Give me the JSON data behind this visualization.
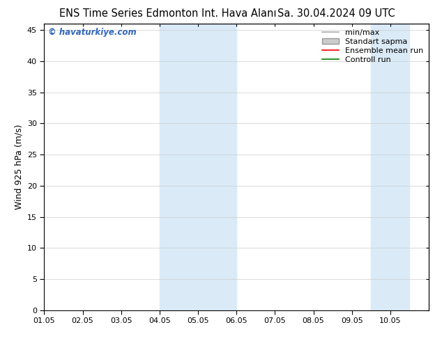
{
  "title_left": "ENS Time Series Edmonton Int. Hava Alanı",
  "title_right": "Sa. 30.04.2024 09 UTC",
  "ylabel": "Wind 925 hPa (m/s)",
  "watermark": "© havaturkiye.com",
  "xlim": [
    0,
    10
  ],
  "ylim": [
    0,
    46
  ],
  "yticks": [
    0,
    5,
    10,
    15,
    20,
    25,
    30,
    35,
    40,
    45
  ],
  "xtick_labels": [
    "01.05",
    "02.05",
    "03.05",
    "04.05",
    "05.05",
    "06.05",
    "07.05",
    "08.05",
    "09.05",
    "10.05"
  ],
  "xtick_positions": [
    0,
    1,
    2,
    3,
    4,
    5,
    6,
    7,
    8,
    9
  ],
  "shaded_bands": [
    {
      "xmin": 3.0,
      "xmax": 5.0,
      "color": "#daeaf7"
    },
    {
      "xmin": 8.5,
      "xmax": 9.5,
      "color": "#daeaf7"
    }
  ],
  "legend_entries": [
    {
      "label": "min/max",
      "color": "#aaaaaa",
      "lw": 1.2,
      "type": "line"
    },
    {
      "label": "Standart sapma",
      "color": "#cccccc",
      "lw": 6,
      "type": "patch"
    },
    {
      "label": "Ensemble mean run",
      "color": "#ff0000",
      "lw": 1.2,
      "type": "line"
    },
    {
      "label": "Controll run",
      "color": "#008000",
      "lw": 1.2,
      "type": "line"
    }
  ],
  "bg_color": "#ffffff",
  "plot_bg_color": "#ffffff",
  "grid_color": "#cccccc",
  "title_fontsize": 10.5,
  "tick_fontsize": 8,
  "ylabel_fontsize": 9,
  "watermark_color": "#3366bb",
  "legend_fontsize": 8
}
